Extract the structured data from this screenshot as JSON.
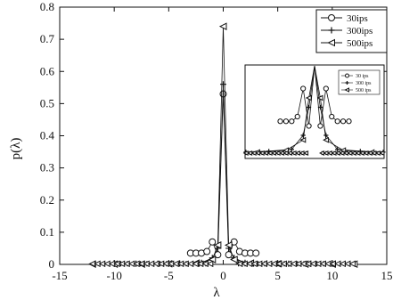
{
  "chart_data": {
    "type": "line",
    "xlabel": "λ",
    "ylabel": "p(λ)",
    "xlim": [
      -15,
      15
    ],
    "ylim": [
      0,
      0.8
    ],
    "xticks": [
      "-15",
      "-10",
      "-5",
      "0",
      "5",
      "10",
      "15"
    ],
    "yticks": [
      "0",
      "0.1",
      "0.2",
      "0.3",
      "0.4",
      "0.5",
      "0.6",
      "0.7",
      "0.8"
    ],
    "legend_position": "top-right",
    "series": [
      {
        "name": "30ips",
        "marker": "circle",
        "x": [
          -3.0,
          -2.5,
          -2.0,
          -1.5,
          -1.0,
          -0.5,
          0.0,
          0.5,
          1.0,
          1.5,
          2.0,
          2.5,
          3.0
        ],
        "y": [
          0.035,
          0.035,
          0.035,
          0.04,
          0.07,
          0.03,
          0.53,
          0.03,
          0.07,
          0.04,
          0.035,
          0.035,
          0.035
        ]
      },
      {
        "name": "300ips",
        "marker": "plus",
        "x": [
          -10,
          -8,
          -6,
          -4,
          -2,
          -1,
          -0.5,
          0.0,
          0.5,
          1,
          2,
          4,
          6,
          8,
          10
        ],
        "y": [
          0.002,
          0.002,
          0.002,
          0.003,
          0.005,
          0.02,
          0.05,
          0.56,
          0.05,
          0.02,
          0.005,
          0.003,
          0.002,
          0.002,
          0.002
        ]
      },
      {
        "name": "500ips",
        "marker": "triangle-left",
        "x": [
          -12,
          -10,
          -7.5,
          -5,
          -2.5,
          -1,
          -0.5,
          0.0,
          0.5,
          1,
          2.5,
          5,
          7.5,
          10,
          12
        ],
        "y": [
          0.001,
          0.001,
          0.001,
          0.002,
          0.004,
          0.015,
          0.06,
          0.74,
          0.06,
          0.015,
          0.004,
          0.002,
          0.001,
          0.001,
          0.001
        ]
      }
    ],
    "inset": {
      "legend": [
        "30 ips",
        "300 ips",
        "500 ips"
      ]
    }
  }
}
